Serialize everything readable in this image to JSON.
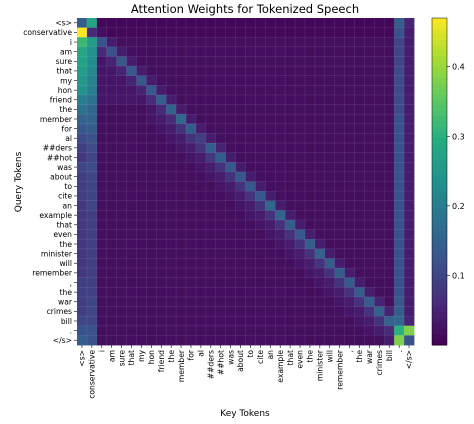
{
  "chart_data": {
    "type": "heatmap",
    "title": "Attention Weights for Tokenized Speech",
    "xlabel": "Key Tokens",
    "ylabel": "Query Tokens",
    "tokens": [
      "<s>",
      "conservative",
      "i",
      "am",
      "sure",
      "that",
      "my",
      "hon",
      "friend",
      "the",
      "member",
      "for",
      "al",
      "##ders",
      "##hot",
      "was",
      "about",
      "to",
      "cite",
      "an",
      "example",
      "that",
      "even",
      "the",
      "minister",
      "will",
      "remember",
      ",",
      "the",
      "war",
      "crimes",
      "bill",
      ".",
      "</s>"
    ],
    "colorbar": {
      "ticks": [
        0.1,
        0.2,
        0.3,
        0.4
      ],
      "tick_labels": [
        "0.1",
        "0.2",
        "0.3",
        "0.4"
      ],
      "range": [
        0.0,
        0.47
      ]
    },
    "colormap": "viridis",
    "grid": true,
    "values": [
      [
        0.14,
        0.28,
        0.01,
        0.01,
        0.01,
        0.01,
        0.01,
        0.01,
        0.01,
        0.01,
        0.01,
        0.01,
        0.01,
        0.01,
        0.01,
        0.01,
        0.01,
        0.01,
        0.01,
        0.01,
        0.01,
        0.01,
        0.01,
        0.01,
        0.01,
        0.01,
        0.01,
        0.01,
        0.01,
        0.01,
        0.01,
        0.01,
        0.14,
        0.05
      ],
      [
        0.47,
        0.06,
        0.02,
        0.01,
        0.01,
        0.01,
        0.01,
        0.01,
        0.01,
        0.01,
        0.01,
        0.01,
        0.01,
        0.01,
        0.01,
        0.01,
        0.01,
        0.01,
        0.01,
        0.01,
        0.01,
        0.01,
        0.01,
        0.01,
        0.01,
        0.01,
        0.01,
        0.01,
        0.01,
        0.01,
        0.01,
        0.01,
        0.12,
        0.04
      ],
      [
        0.32,
        0.26,
        0.12,
        0.04,
        0.02,
        0.02,
        0.02,
        0.02,
        0.02,
        0.02,
        0.02,
        0.02,
        0.02,
        0.02,
        0.02,
        0.02,
        0.02,
        0.02,
        0.02,
        0.02,
        0.02,
        0.02,
        0.02,
        0.02,
        0.02,
        0.02,
        0.02,
        0.02,
        0.02,
        0.02,
        0.02,
        0.02,
        0.1,
        0.04
      ],
      [
        0.28,
        0.24,
        0.06,
        0.12,
        0.04,
        0.02,
        0.02,
        0.02,
        0.02,
        0.02,
        0.02,
        0.02,
        0.02,
        0.02,
        0.02,
        0.02,
        0.02,
        0.02,
        0.02,
        0.02,
        0.02,
        0.02,
        0.02,
        0.02,
        0.02,
        0.02,
        0.02,
        0.02,
        0.02,
        0.02,
        0.02,
        0.02,
        0.1,
        0.04
      ],
      [
        0.27,
        0.23,
        0.03,
        0.05,
        0.13,
        0.04,
        0.02,
        0.02,
        0.02,
        0.02,
        0.02,
        0.02,
        0.02,
        0.02,
        0.02,
        0.02,
        0.02,
        0.02,
        0.02,
        0.02,
        0.02,
        0.02,
        0.02,
        0.02,
        0.02,
        0.02,
        0.02,
        0.02,
        0.02,
        0.02,
        0.02,
        0.02,
        0.1,
        0.04
      ],
      [
        0.26,
        0.22,
        0.03,
        0.03,
        0.05,
        0.13,
        0.04,
        0.02,
        0.02,
        0.02,
        0.02,
        0.02,
        0.02,
        0.02,
        0.02,
        0.02,
        0.02,
        0.02,
        0.02,
        0.02,
        0.02,
        0.02,
        0.02,
        0.02,
        0.02,
        0.02,
        0.02,
        0.02,
        0.02,
        0.02,
        0.02,
        0.02,
        0.11,
        0.04
      ],
      [
        0.25,
        0.21,
        0.03,
        0.03,
        0.03,
        0.05,
        0.13,
        0.04,
        0.02,
        0.02,
        0.02,
        0.02,
        0.02,
        0.02,
        0.02,
        0.02,
        0.02,
        0.02,
        0.02,
        0.02,
        0.02,
        0.02,
        0.02,
        0.02,
        0.02,
        0.02,
        0.02,
        0.02,
        0.02,
        0.02,
        0.02,
        0.02,
        0.11,
        0.04
      ],
      [
        0.24,
        0.2,
        0.03,
        0.03,
        0.03,
        0.03,
        0.05,
        0.13,
        0.04,
        0.02,
        0.02,
        0.02,
        0.02,
        0.02,
        0.02,
        0.02,
        0.02,
        0.02,
        0.02,
        0.02,
        0.02,
        0.02,
        0.02,
        0.02,
        0.02,
        0.02,
        0.02,
        0.02,
        0.02,
        0.02,
        0.02,
        0.02,
        0.11,
        0.04
      ],
      [
        0.2,
        0.18,
        0.03,
        0.03,
        0.03,
        0.03,
        0.03,
        0.06,
        0.14,
        0.04,
        0.02,
        0.02,
        0.02,
        0.02,
        0.02,
        0.02,
        0.02,
        0.02,
        0.02,
        0.02,
        0.02,
        0.02,
        0.02,
        0.02,
        0.02,
        0.02,
        0.02,
        0.02,
        0.02,
        0.02,
        0.02,
        0.02,
        0.11,
        0.04
      ],
      [
        0.18,
        0.16,
        0.02,
        0.02,
        0.02,
        0.02,
        0.02,
        0.03,
        0.06,
        0.15,
        0.04,
        0.02,
        0.02,
        0.02,
        0.02,
        0.02,
        0.02,
        0.02,
        0.02,
        0.02,
        0.02,
        0.02,
        0.02,
        0.02,
        0.02,
        0.02,
        0.02,
        0.02,
        0.02,
        0.02,
        0.02,
        0.02,
        0.11,
        0.04
      ],
      [
        0.15,
        0.15,
        0.02,
        0.02,
        0.02,
        0.02,
        0.02,
        0.03,
        0.04,
        0.06,
        0.16,
        0.04,
        0.02,
        0.02,
        0.02,
        0.02,
        0.02,
        0.02,
        0.02,
        0.02,
        0.02,
        0.02,
        0.02,
        0.02,
        0.02,
        0.02,
        0.02,
        0.02,
        0.02,
        0.02,
        0.02,
        0.02,
        0.12,
        0.04
      ],
      [
        0.13,
        0.14,
        0.02,
        0.02,
        0.02,
        0.02,
        0.02,
        0.02,
        0.03,
        0.04,
        0.07,
        0.14,
        0.04,
        0.02,
        0.02,
        0.02,
        0.02,
        0.02,
        0.02,
        0.02,
        0.02,
        0.02,
        0.02,
        0.02,
        0.02,
        0.02,
        0.02,
        0.02,
        0.02,
        0.02,
        0.02,
        0.02,
        0.12,
        0.04
      ],
      [
        0.11,
        0.12,
        0.02,
        0.02,
        0.02,
        0.02,
        0.02,
        0.02,
        0.02,
        0.03,
        0.04,
        0.07,
        0.09,
        0.04,
        0.02,
        0.02,
        0.02,
        0.02,
        0.02,
        0.02,
        0.02,
        0.02,
        0.02,
        0.02,
        0.02,
        0.02,
        0.02,
        0.02,
        0.02,
        0.02,
        0.02,
        0.02,
        0.12,
        0.04
      ],
      [
        0.09,
        0.11,
        0.02,
        0.02,
        0.02,
        0.02,
        0.02,
        0.02,
        0.02,
        0.02,
        0.03,
        0.04,
        0.07,
        0.14,
        0.05,
        0.02,
        0.02,
        0.02,
        0.02,
        0.02,
        0.02,
        0.02,
        0.02,
        0.02,
        0.02,
        0.02,
        0.02,
        0.02,
        0.02,
        0.02,
        0.02,
        0.02,
        0.12,
        0.04
      ],
      [
        0.08,
        0.1,
        0.02,
        0.02,
        0.02,
        0.02,
        0.02,
        0.02,
        0.02,
        0.02,
        0.02,
        0.03,
        0.04,
        0.08,
        0.14,
        0.04,
        0.02,
        0.02,
        0.02,
        0.02,
        0.02,
        0.02,
        0.02,
        0.02,
        0.02,
        0.02,
        0.02,
        0.02,
        0.02,
        0.02,
        0.02,
        0.02,
        0.12,
        0.04
      ],
      [
        0.1,
        0.11,
        0.02,
        0.02,
        0.02,
        0.02,
        0.02,
        0.02,
        0.02,
        0.02,
        0.02,
        0.02,
        0.03,
        0.04,
        0.07,
        0.13,
        0.04,
        0.02,
        0.02,
        0.02,
        0.02,
        0.02,
        0.02,
        0.02,
        0.02,
        0.02,
        0.02,
        0.02,
        0.02,
        0.02,
        0.02,
        0.02,
        0.12,
        0.04
      ],
      [
        0.09,
        0.1,
        0.02,
        0.02,
        0.02,
        0.02,
        0.02,
        0.02,
        0.02,
        0.02,
        0.02,
        0.02,
        0.02,
        0.03,
        0.04,
        0.07,
        0.13,
        0.04,
        0.02,
        0.02,
        0.02,
        0.02,
        0.02,
        0.02,
        0.02,
        0.02,
        0.02,
        0.02,
        0.02,
        0.02,
        0.02,
        0.02,
        0.12,
        0.04
      ],
      [
        0.09,
        0.1,
        0.02,
        0.02,
        0.02,
        0.02,
        0.02,
        0.02,
        0.02,
        0.02,
        0.02,
        0.02,
        0.02,
        0.02,
        0.03,
        0.04,
        0.07,
        0.13,
        0.04,
        0.02,
        0.02,
        0.02,
        0.02,
        0.02,
        0.02,
        0.02,
        0.02,
        0.02,
        0.02,
        0.02,
        0.02,
        0.02,
        0.12,
        0.04
      ],
      [
        0.09,
        0.1,
        0.02,
        0.02,
        0.02,
        0.02,
        0.02,
        0.02,
        0.02,
        0.02,
        0.02,
        0.02,
        0.02,
        0.02,
        0.02,
        0.03,
        0.04,
        0.07,
        0.13,
        0.04,
        0.02,
        0.02,
        0.02,
        0.02,
        0.02,
        0.02,
        0.02,
        0.02,
        0.02,
        0.02,
        0.02,
        0.02,
        0.12,
        0.04
      ],
      [
        0.08,
        0.1,
        0.02,
        0.02,
        0.02,
        0.02,
        0.02,
        0.02,
        0.02,
        0.02,
        0.02,
        0.02,
        0.02,
        0.02,
        0.02,
        0.02,
        0.03,
        0.04,
        0.07,
        0.16,
        0.04,
        0.02,
        0.02,
        0.02,
        0.02,
        0.02,
        0.02,
        0.02,
        0.02,
        0.02,
        0.02,
        0.02,
        0.12,
        0.04
      ],
      [
        0.08,
        0.09,
        0.02,
        0.02,
        0.02,
        0.02,
        0.02,
        0.02,
        0.02,
        0.02,
        0.02,
        0.02,
        0.02,
        0.02,
        0.02,
        0.02,
        0.02,
        0.03,
        0.04,
        0.07,
        0.15,
        0.04,
        0.02,
        0.02,
        0.02,
        0.02,
        0.02,
        0.02,
        0.02,
        0.02,
        0.02,
        0.02,
        0.12,
        0.04
      ],
      [
        0.08,
        0.09,
        0.02,
        0.02,
        0.02,
        0.02,
        0.02,
        0.02,
        0.02,
        0.02,
        0.02,
        0.02,
        0.02,
        0.02,
        0.02,
        0.02,
        0.02,
        0.02,
        0.03,
        0.04,
        0.07,
        0.14,
        0.04,
        0.02,
        0.02,
        0.02,
        0.02,
        0.02,
        0.02,
        0.02,
        0.02,
        0.02,
        0.12,
        0.04
      ],
      [
        0.08,
        0.09,
        0.02,
        0.02,
        0.02,
        0.02,
        0.02,
        0.02,
        0.02,
        0.02,
        0.02,
        0.02,
        0.02,
        0.02,
        0.02,
        0.02,
        0.02,
        0.02,
        0.02,
        0.03,
        0.04,
        0.07,
        0.13,
        0.04,
        0.02,
        0.02,
        0.02,
        0.02,
        0.02,
        0.02,
        0.02,
        0.02,
        0.12,
        0.04
      ],
      [
        0.08,
        0.09,
        0.02,
        0.02,
        0.02,
        0.02,
        0.02,
        0.02,
        0.02,
        0.02,
        0.02,
        0.02,
        0.02,
        0.02,
        0.02,
        0.02,
        0.02,
        0.02,
        0.02,
        0.02,
        0.03,
        0.04,
        0.07,
        0.14,
        0.04,
        0.02,
        0.02,
        0.02,
        0.02,
        0.02,
        0.02,
        0.02,
        0.12,
        0.04
      ],
      [
        0.08,
        0.09,
        0.02,
        0.02,
        0.02,
        0.02,
        0.02,
        0.02,
        0.02,
        0.02,
        0.02,
        0.02,
        0.02,
        0.02,
        0.02,
        0.02,
        0.02,
        0.02,
        0.02,
        0.02,
        0.02,
        0.03,
        0.04,
        0.07,
        0.15,
        0.04,
        0.02,
        0.02,
        0.02,
        0.02,
        0.02,
        0.02,
        0.12,
        0.04
      ],
      [
        0.08,
        0.09,
        0.02,
        0.02,
        0.02,
        0.02,
        0.02,
        0.02,
        0.02,
        0.02,
        0.02,
        0.02,
        0.02,
        0.02,
        0.02,
        0.02,
        0.02,
        0.02,
        0.02,
        0.02,
        0.02,
        0.02,
        0.03,
        0.04,
        0.07,
        0.14,
        0.04,
        0.02,
        0.02,
        0.02,
        0.02,
        0.02,
        0.12,
        0.04
      ],
      [
        0.08,
        0.09,
        0.02,
        0.02,
        0.02,
        0.02,
        0.02,
        0.02,
        0.02,
        0.02,
        0.02,
        0.02,
        0.02,
        0.02,
        0.02,
        0.02,
        0.02,
        0.02,
        0.02,
        0.02,
        0.02,
        0.02,
        0.02,
        0.03,
        0.04,
        0.07,
        0.14,
        0.04,
        0.02,
        0.02,
        0.02,
        0.02,
        0.12,
        0.04
      ],
      [
        0.09,
        0.09,
        0.02,
        0.02,
        0.02,
        0.02,
        0.02,
        0.02,
        0.02,
        0.02,
        0.02,
        0.02,
        0.02,
        0.02,
        0.02,
        0.02,
        0.02,
        0.02,
        0.02,
        0.02,
        0.02,
        0.02,
        0.02,
        0.02,
        0.03,
        0.04,
        0.07,
        0.14,
        0.04,
        0.02,
        0.02,
        0.02,
        0.12,
        0.04
      ],
      [
        0.09,
        0.09,
        0.02,
        0.02,
        0.02,
        0.02,
        0.02,
        0.02,
        0.02,
        0.02,
        0.02,
        0.02,
        0.02,
        0.02,
        0.02,
        0.02,
        0.02,
        0.02,
        0.02,
        0.02,
        0.02,
        0.02,
        0.02,
        0.02,
        0.02,
        0.03,
        0.04,
        0.07,
        0.14,
        0.04,
        0.02,
        0.02,
        0.12,
        0.04
      ],
      [
        0.09,
        0.1,
        0.02,
        0.02,
        0.02,
        0.02,
        0.02,
        0.02,
        0.02,
        0.02,
        0.02,
        0.02,
        0.02,
        0.02,
        0.02,
        0.02,
        0.02,
        0.02,
        0.02,
        0.02,
        0.02,
        0.02,
        0.02,
        0.02,
        0.02,
        0.02,
        0.03,
        0.04,
        0.07,
        0.14,
        0.05,
        0.02,
        0.13,
        0.04
      ],
      [
        0.09,
        0.1,
        0.02,
        0.02,
        0.02,
        0.02,
        0.02,
        0.02,
        0.02,
        0.02,
        0.02,
        0.02,
        0.02,
        0.02,
        0.02,
        0.02,
        0.02,
        0.02,
        0.02,
        0.02,
        0.02,
        0.02,
        0.02,
        0.02,
        0.02,
        0.02,
        0.02,
        0.03,
        0.04,
        0.07,
        0.15,
        0.05,
        0.14,
        0.04
      ],
      [
        0.1,
        0.1,
        0.02,
        0.02,
        0.02,
        0.02,
        0.02,
        0.02,
        0.02,
        0.02,
        0.02,
        0.02,
        0.02,
        0.02,
        0.02,
        0.02,
        0.02,
        0.02,
        0.02,
        0.02,
        0.02,
        0.02,
        0.02,
        0.02,
        0.02,
        0.02,
        0.02,
        0.02,
        0.03,
        0.04,
        0.07,
        0.15,
        0.16,
        0.05
      ],
      [
        0.12,
        0.12,
        0.02,
        0.02,
        0.02,
        0.02,
        0.02,
        0.02,
        0.02,
        0.02,
        0.02,
        0.02,
        0.02,
        0.02,
        0.02,
        0.02,
        0.02,
        0.02,
        0.02,
        0.02,
        0.02,
        0.02,
        0.02,
        0.02,
        0.02,
        0.02,
        0.02,
        0.02,
        0.02,
        0.03,
        0.04,
        0.06,
        0.3,
        0.38
      ],
      [
        0.14,
        0.12,
        0.02,
        0.02,
        0.02,
        0.02,
        0.02,
        0.02,
        0.02,
        0.02,
        0.02,
        0.02,
        0.02,
        0.02,
        0.02,
        0.02,
        0.02,
        0.02,
        0.02,
        0.02,
        0.02,
        0.02,
        0.02,
        0.02,
        0.02,
        0.02,
        0.02,
        0.02,
        0.02,
        0.02,
        0.02,
        0.04,
        0.38,
        0.12
      ]
    ]
  }
}
